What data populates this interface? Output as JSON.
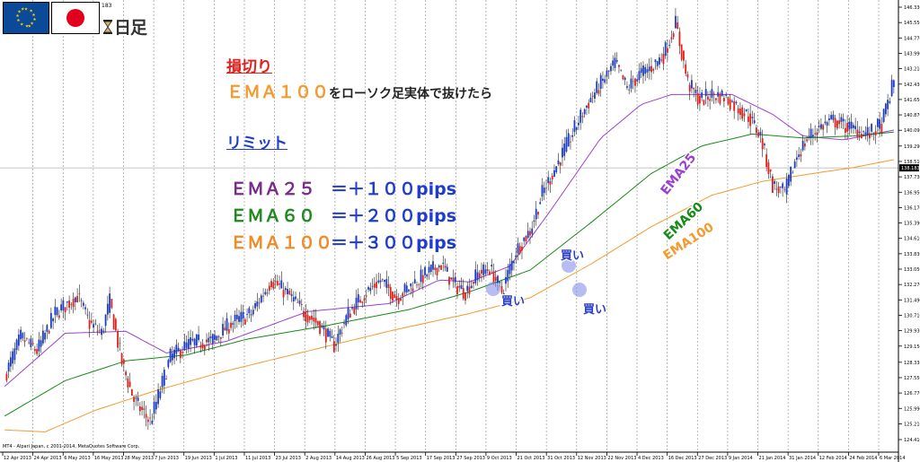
{
  "header": {
    "timeframe_label": "日足",
    "corner_value": "183",
    "flags": [
      "eu-flag-icon",
      "japan-flag-icon"
    ],
    "timeframe_icon": "hourglass-icon"
  },
  "annotations": {
    "stop_loss_title": "損切り",
    "stop_loss_rule_ema": "ＥＭＡ１００",
    "stop_loss_rule_text": "をローソク足実体で抜けたら",
    "limit_title": "リミット",
    "limit_rows": [
      {
        "ema": "ＥＭＡ２５",
        "value": "＝＋１００pips",
        "color": "#7a2a8a"
      },
      {
        "ema": "ＥＭＡ６０",
        "value": "＝＋２００pips",
        "color": "#1e8a1e"
      },
      {
        "ema": "ＥＭＡ１００",
        "value": "＝＋３００pips",
        "color": "#f08a24"
      }
    ],
    "buy_label": "買い"
  },
  "colors": {
    "title_red": "#e0201a",
    "limit_blue": "#1e3ccf",
    "value_blue": "#1e3ccf",
    "ema25": "#9b3fd1",
    "ema60": "#168a16",
    "ema100": "#f59a30",
    "bull_candle": "#1a3cc8",
    "bear_candle": "#e0201a"
  },
  "chart_data": {
    "type": "candlestick",
    "instrument_flags": "EUR/JPY",
    "timeframe": "日足",
    "credit": "MT4 - Alpari Japan, c 2001-2014, MetaQuotes Software Corp.",
    "y_ticks": [
      "146.330",
      "145.550",
      "144.770",
      "143.990",
      "143.210",
      "142.430",
      "141.650",
      "140.870",
      "140.090",
      "139.290",
      "138.510",
      "137.730",
      "136.950",
      "136.170",
      "135.390",
      "134.610",
      "133.830",
      "133.050",
      "132.270",
      "131.490",
      "130.710",
      "129.930",
      "129.150",
      "128.330",
      "127.550",
      "126.770",
      "125.990",
      "125.210",
      "124.410"
    ],
    "ylim": [
      124.41,
      146.33
    ],
    "current_price": "138.183",
    "x_ticks": [
      "12 Apr 2013",
      "24 Apr 2013",
      "6 May 2013",
      "16 May 2013",
      "28 May 2013",
      "7 Jun 2013",
      "19 Jun 2013",
      "1 Jul 2013",
      "11 Jul 2013",
      "23 Jul 2013",
      "2 Aug 2013",
      "14 Aug 2013",
      "26 Aug 2013",
      "5 Sep 2013",
      "17 Sep 2013",
      "27 Sep 2013",
      "9 Oct 2013",
      "21 Oct 2013",
      "31 Oct 2013",
      "12 Nov 2013",
      "22 Nov 2013",
      "4 Dec 2013",
      "16 Dec 2013",
      "27 Dec 2013",
      "9 Jan 2014",
      "21 Jan 2014",
      "31 Jan 2014",
      "12 Feb 2014",
      "24 Feb 2014",
      "6 Mar 2014"
    ],
    "series": [
      {
        "name": "EMA25",
        "key": "ema25"
      },
      {
        "name": "EMA60",
        "key": "ema60"
      },
      {
        "name": "EMA100",
        "key": "ema100"
      }
    ],
    "price_knots": [
      [
        0,
        127.6
      ],
      [
        8,
        129.6
      ],
      [
        16,
        128.9
      ],
      [
        25,
        130.8
      ],
      [
        36,
        131.7
      ],
      [
        42,
        130.3
      ],
      [
        48,
        129.8
      ],
      [
        52,
        131.4
      ],
      [
        58,
        128.3
      ],
      [
        64,
        126.4
      ],
      [
        72,
        125.3
      ],
      [
        82,
        128.6
      ],
      [
        92,
        129.3
      ],
      [
        102,
        129.4
      ],
      [
        112,
        130.3
      ],
      [
        122,
        130.8
      ],
      [
        132,
        132.5
      ],
      [
        140,
        131.8
      ],
      [
        148,
        130.9
      ],
      [
        156,
        130.2
      ],
      [
        163,
        129.2
      ],
      [
        170,
        130.8
      ],
      [
        178,
        131.8
      ],
      [
        186,
        132.5
      ],
      [
        194,
        131.6
      ],
      [
        202,
        132.3
      ],
      [
        210,
        132.9
      ],
      [
        216,
        133.3
      ],
      [
        222,
        132.3
      ],
      [
        228,
        131.9
      ],
      [
        234,
        132.8
      ],
      [
        240,
        133.1
      ],
      [
        246,
        131.9
      ],
      [
        253,
        134.0
      ],
      [
        260,
        135.0
      ],
      [
        266,
        136.9
      ],
      [
        272,
        138.1
      ],
      [
        278,
        139.3
      ],
      [
        284,
        140.6
      ],
      [
        290,
        141.7
      ],
      [
        296,
        142.6
      ],
      [
        302,
        143.5
      ],
      [
        308,
        142.2
      ],
      [
        314,
        142.9
      ],
      [
        320,
        143.3
      ],
      [
        326,
        143.9
      ],
      [
        332,
        145.5
      ],
      [
        338,
        142.5
      ],
      [
        344,
        141.6
      ],
      [
        350,
        141.9
      ],
      [
        356,
        141.8
      ],
      [
        362,
        141.3
      ],
      [
        368,
        140.8
      ],
      [
        374,
        139.8
      ],
      [
        380,
        137.3
      ],
      [
        386,
        136.9
      ],
      [
        392,
        138.8
      ],
      [
        398,
        139.8
      ],
      [
        404,
        140.3
      ],
      [
        410,
        140.6
      ],
      [
        416,
        140.3
      ],
      [
        422,
        140.1
      ],
      [
        428,
        139.9
      ],
      [
        434,
        140.4
      ],
      [
        440,
        142.6
      ]
    ],
    "ema_knots": {
      "ema25": [
        [
          0,
          127.1
        ],
        [
          30,
          129.8
        ],
        [
          60,
          129.9
        ],
        [
          80,
          128.8
        ],
        [
          110,
          129.4
        ],
        [
          150,
          130.9
        ],
        [
          190,
          131.3
        ],
        [
          215,
          132.5
        ],
        [
          230,
          132.4
        ],
        [
          250,
          133.2
        ],
        [
          270,
          136.0
        ],
        [
          295,
          139.7
        ],
        [
          315,
          141.4
        ],
        [
          330,
          141.9
        ],
        [
          345,
          141.9
        ],
        [
          360,
          141.9
        ],
        [
          380,
          140.9
        ],
        [
          395,
          139.8
        ],
        [
          415,
          139.6
        ],
        [
          440,
          140.1
        ]
      ],
      "ema60": [
        [
          0,
          125.6
        ],
        [
          30,
          127.4
        ],
        [
          60,
          128.4
        ],
        [
          90,
          128.7
        ],
        [
          120,
          129.5
        ],
        [
          160,
          130.2
        ],
        [
          200,
          131.0
        ],
        [
          230,
          131.9
        ],
        [
          260,
          133.0
        ],
        [
          290,
          135.4
        ],
        [
          320,
          137.9
        ],
        [
          345,
          139.3
        ],
        [
          370,
          139.9
        ],
        [
          395,
          139.7
        ],
        [
          420,
          139.8
        ],
        [
          440,
          140.0
        ]
      ],
      "ema100": [
        [
          0,
          124.9
        ],
        [
          20,
          124.8
        ],
        [
          45,
          125.9
        ],
        [
          75,
          126.9
        ],
        [
          110,
          127.9
        ],
        [
          150,
          128.9
        ],
        [
          190,
          129.9
        ],
        [
          230,
          130.8
        ],
        [
          260,
          131.6
        ],
        [
          290,
          133.3
        ],
        [
          320,
          135.2
        ],
        [
          350,
          136.8
        ],
        [
          375,
          137.5
        ],
        [
          400,
          137.9
        ],
        [
          420,
          138.2
        ],
        [
          440,
          138.6
        ]
      ]
    }
  }
}
